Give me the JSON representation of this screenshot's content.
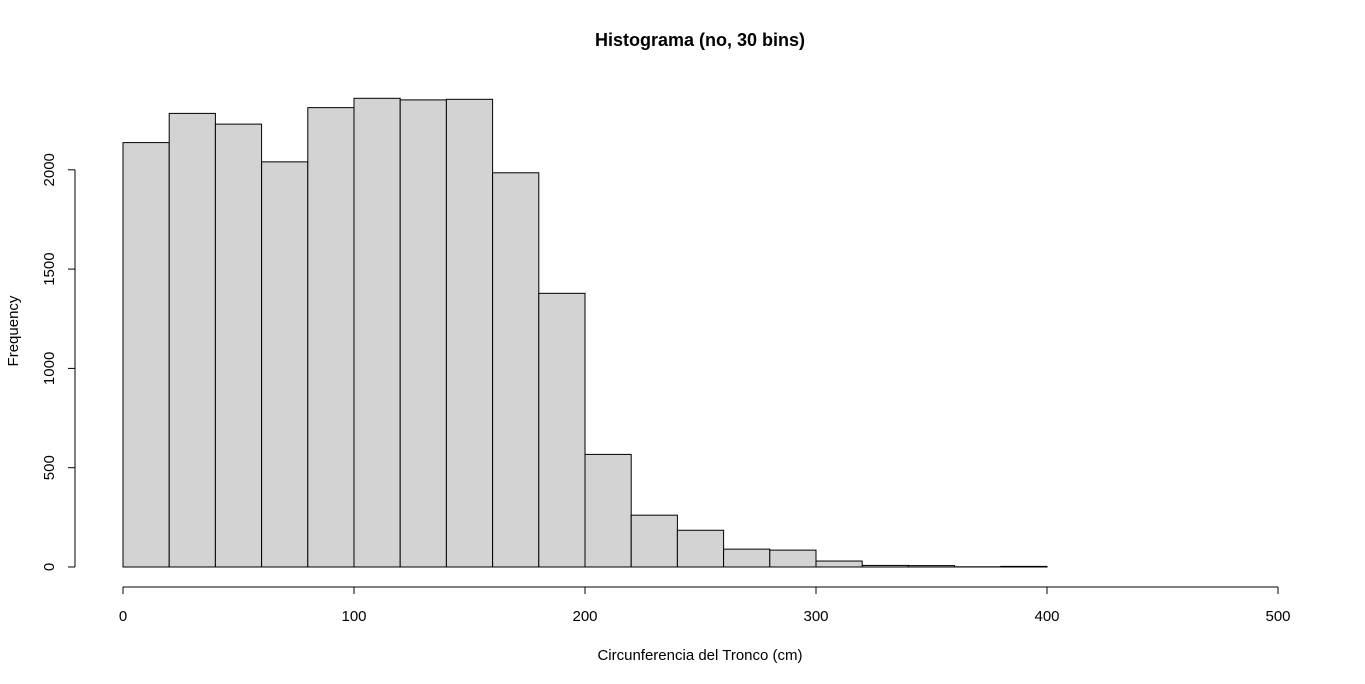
{
  "chart_data": {
    "type": "bar",
    "title": "Histograma (no, 30 bins)",
    "xlabel": "Circunferencia del Tronco (cm)",
    "ylabel": "Frequency",
    "xlim": [
      0,
      500
    ],
    "ylim": [
      0,
      2400
    ],
    "xticks": [
      "0",
      "100",
      "200",
      "300",
      "400",
      "500"
    ],
    "yticks": [
      "0",
      "500",
      "1000",
      "1500",
      "2000"
    ],
    "bin_width": 20,
    "bins": [
      {
        "start": 0,
        "end": 20,
        "count": 2137
      },
      {
        "start": 20,
        "end": 40,
        "count": 2284
      },
      {
        "start": 40,
        "end": 60,
        "count": 2230
      },
      {
        "start": 60,
        "end": 80,
        "count": 2040
      },
      {
        "start": 80,
        "end": 100,
        "count": 2313
      },
      {
        "start": 100,
        "end": 120,
        "count": 2360
      },
      {
        "start": 120,
        "end": 140,
        "count": 2352
      },
      {
        "start": 140,
        "end": 160,
        "count": 2355
      },
      {
        "start": 160,
        "end": 180,
        "count": 1985
      },
      {
        "start": 180,
        "end": 200,
        "count": 1378
      },
      {
        "start": 200,
        "end": 220,
        "count": 567
      },
      {
        "start": 220,
        "end": 240,
        "count": 261
      },
      {
        "start": 240,
        "end": 260,
        "count": 185
      },
      {
        "start": 260,
        "end": 280,
        "count": 90
      },
      {
        "start": 280,
        "end": 300,
        "count": 85
      },
      {
        "start": 300,
        "end": 320,
        "count": 30
      },
      {
        "start": 320,
        "end": 340,
        "count": 8
      },
      {
        "start": 340,
        "end": 360,
        "count": 7
      },
      {
        "start": 360,
        "end": 380,
        "count": 1
      },
      {
        "start": 380,
        "end": 400,
        "count": 3
      },
      {
        "start": 400,
        "end": 420,
        "count": 0
      },
      {
        "start": 420,
        "end": 440,
        "count": 0
      },
      {
        "start": 440,
        "end": 460,
        "count": 0
      },
      {
        "start": 460,
        "end": 480,
        "count": 0
      },
      {
        "start": 480,
        "end": 500,
        "count": 0
      }
    ],
    "colors": {
      "bar_fill": "#d3d3d3",
      "bar_stroke": "#000000",
      "axis": "#000000",
      "background": "#ffffff"
    },
    "grid": false,
    "legend": "none"
  }
}
